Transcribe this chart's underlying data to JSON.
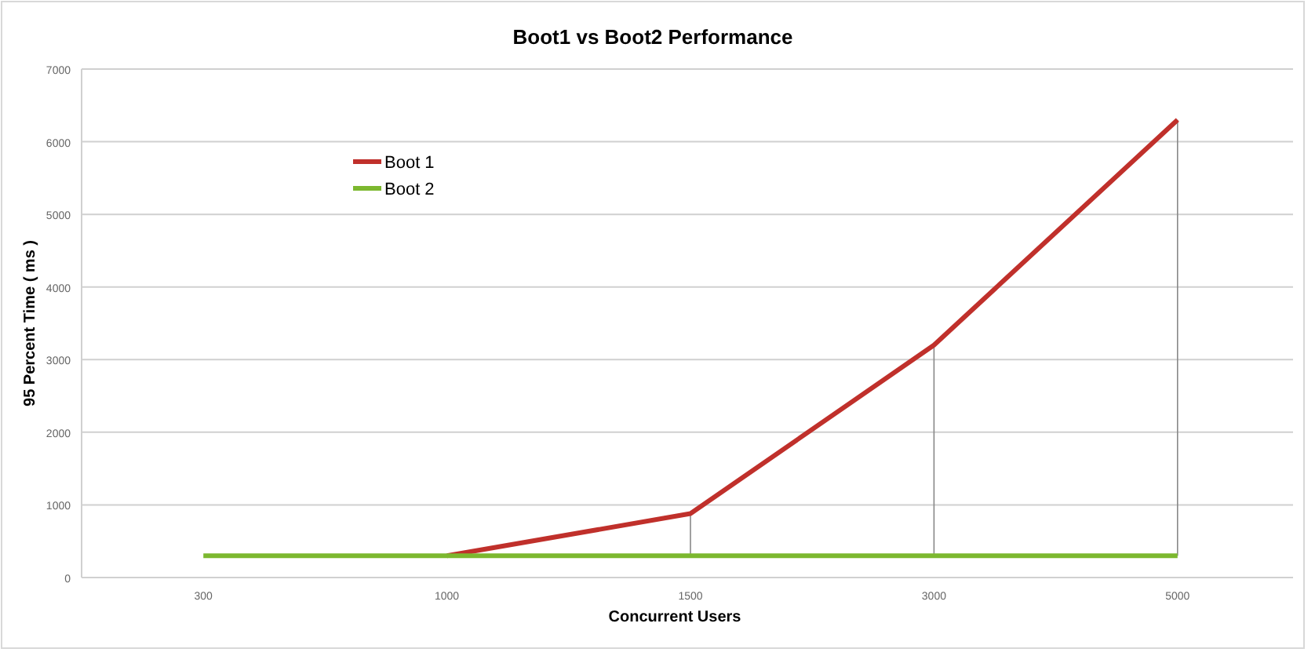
{
  "chart_data": {
    "type": "line",
    "title": "Boot1 vs Boot2 Performance",
    "xlabel": "Concurrent Users",
    "ylabel": "95 Percent Time ( ms )",
    "categories": [
      "300",
      "1000",
      "1500",
      "3000",
      "5000"
    ],
    "series": [
      {
        "name": "Boot 1",
        "color": "#c0302b",
        "values": [
          null,
          300,
          880,
          3200,
          6300
        ],
        "errors": [
          null,
          null,
          [
            300,
            880
          ],
          [
            300,
            3200
          ],
          [
            300,
            6300
          ]
        ]
      },
      {
        "name": "Boot 2",
        "color": "#7cb82f",
        "values": [
          300,
          300,
          300,
          300,
          300
        ]
      }
    ],
    "ylim": [
      0,
      7000
    ],
    "yticks": [
      0,
      1000,
      2000,
      3000,
      4000,
      5000,
      6000,
      7000
    ],
    "grid": "y",
    "legend": "top left",
    "marker": "none",
    "line_style": "solid"
  }
}
